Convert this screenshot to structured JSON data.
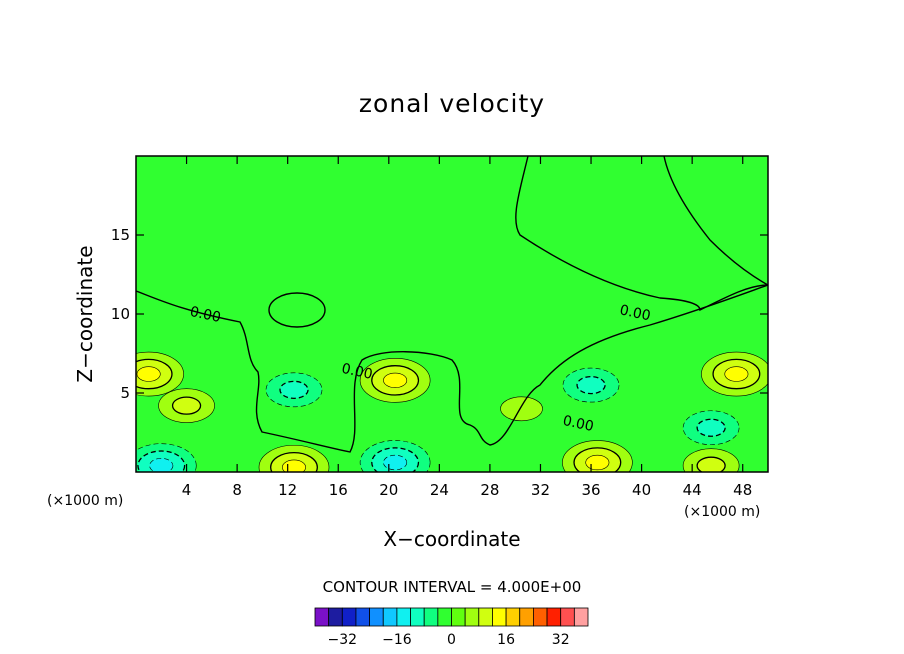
{
  "chart_data": {
    "type": "contour",
    "title": "zonal velocity",
    "xlabel": "X−coordinate",
    "ylabel": "Z−coordinate",
    "x_unit_left": "(×1000 m)",
    "x_unit_right": "(×1000 m)",
    "xlim": [
      0,
      50
    ],
    "ylim": [
      0,
      20
    ],
    "xticks": [
      4,
      8,
      12,
      16,
      20,
      24,
      28,
      32,
      36,
      40,
      44,
      48
    ],
    "yticks": [
      5,
      10,
      15
    ],
    "background_value": 0,
    "contour_interval_text": "CONTOUR INTERVAL = 4.000E+00",
    "contour_interval": 4,
    "contour_labels": [
      {
        "text": "0.00",
        "x": 5.5,
        "z": 10.0
      },
      {
        "text": "0.00",
        "x": 39.5,
        "z": 10.1
      },
      {
        "text": "0.00",
        "x": 17.5,
        "z": 6.4
      },
      {
        "text": "0.00",
        "x": 35.0,
        "z": 3.1
      }
    ],
    "features": [
      {
        "x": 1.0,
        "z": 6.2,
        "value": 12
      },
      {
        "x": 4.0,
        "z": 4.2,
        "value": 8
      },
      {
        "x": 12.5,
        "z": 10.5,
        "value": 0
      },
      {
        "x": 12.5,
        "z": 5.2,
        "value": -8
      },
      {
        "x": 20.5,
        "z": 5.8,
        "value": 12
      },
      {
        "x": 30.5,
        "z": 4.0,
        "value": 4
      },
      {
        "x": 36.0,
        "z": 5.5,
        "value": -8
      },
      {
        "x": 47.5,
        "z": 6.2,
        "value": 12
      },
      {
        "x": 45.5,
        "z": 2.8,
        "value": -8
      },
      {
        "x": 2.0,
        "z": 0.4,
        "value": -12
      },
      {
        "x": 12.5,
        "z": 0.3,
        "value": 12
      },
      {
        "x": 20.5,
        "z": 0.6,
        "value": -12
      },
      {
        "x": 36.5,
        "z": 0.6,
        "value": 12
      },
      {
        "x": 45.5,
        "z": 0.4,
        "value": 8
      }
    ],
    "colorbar": {
      "ticks": [
        -32,
        -16,
        0,
        16,
        32
      ],
      "boundaries": [
        -40,
        -36,
        -32,
        -28,
        -24,
        -20,
        -16,
        -12,
        -8,
        -4,
        0,
        4,
        8,
        12,
        16,
        20,
        24,
        28,
        32,
        36,
        40
      ],
      "colors": [
        "#7a10c8",
        "#1d1ca0",
        "#1020c8",
        "#1050e8",
        "#1090ff",
        "#10c8ff",
        "#10f0f0",
        "#10ffc0",
        "#10ff80",
        "#30ff30",
        "#60ff10",
        "#a0ff10",
        "#d0ff10",
        "#ffff00",
        "#ffd000",
        "#ffa000",
        "#ff6000",
        "#ff2000",
        "#ff5050",
        "#ffa0a0"
      ]
    }
  }
}
